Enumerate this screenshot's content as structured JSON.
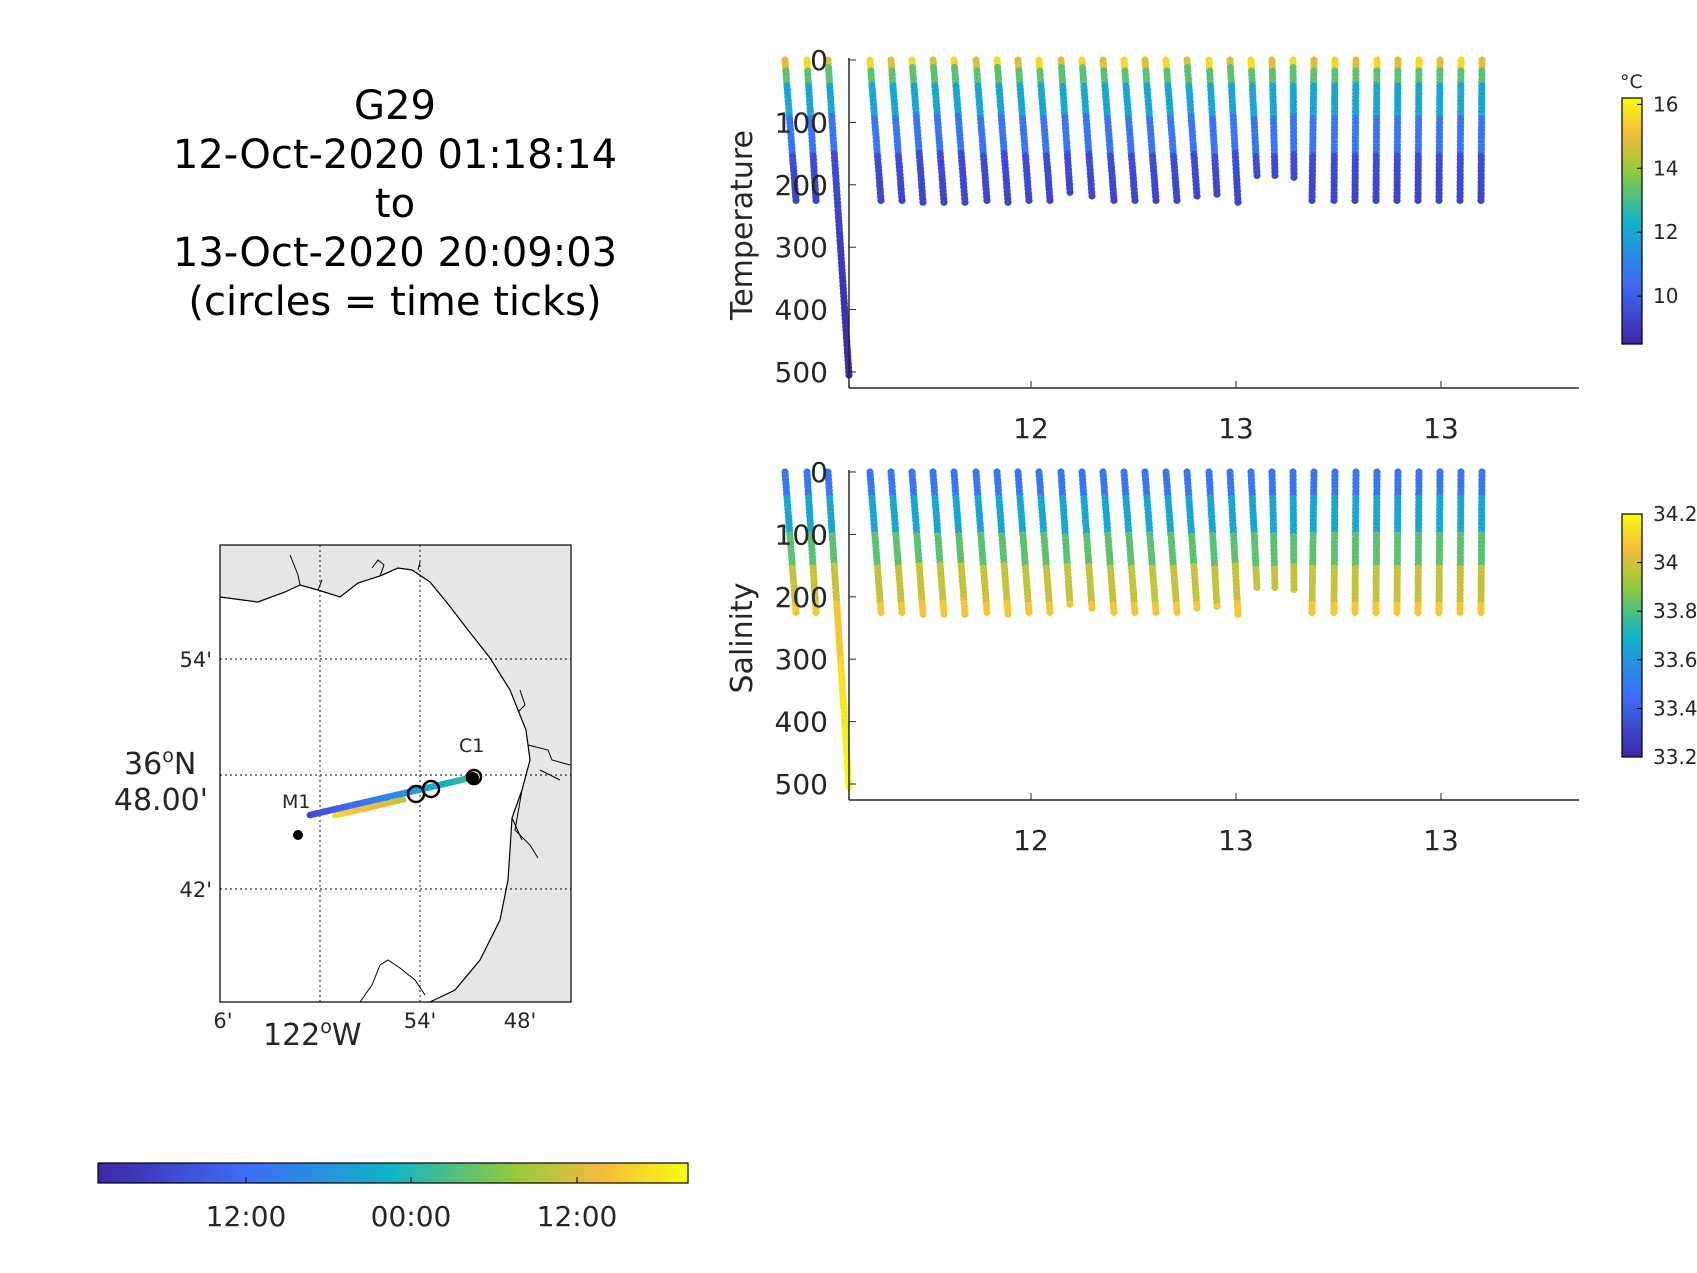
{
  "title": {
    "lines": [
      "G29",
      "12-Oct-2020 01:18:14",
      "to",
      "13-Oct-2020 20:09:03",
      "(circles = time ticks)"
    ]
  },
  "map": {
    "lat_ticks": [
      "54'",
      "42'"
    ],
    "lat_main_line1": "36",
    "lat_main_line1_suffix": "N",
    "lat_main_line2": "48.00'",
    "lon_ticks": [
      "6'",
      "54'",
      "48'"
    ],
    "lon_main": "122",
    "lon_main_suffix": "W",
    "degree_mark": "o",
    "stations": [
      "M1",
      "C1"
    ],
    "land_color": "#e6e6e6"
  },
  "time_colorbar": {
    "tick_labels": [
      "12:00",
      "00:00",
      "12:00"
    ]
  },
  "temp_colorbar": {
    "unit": "°C",
    "tick_labels": [
      "16",
      "14",
      "12",
      "10"
    ],
    "range": [
      8.5,
      16.2
    ]
  },
  "sal_colorbar": {
    "tick_labels": [
      "34.2",
      "34",
      "33.8",
      "33.6",
      "33.4",
      "33.2"
    ],
    "range": [
      33.2,
      34.2
    ]
  },
  "chart_data": [
    {
      "type": "scatter",
      "title": "",
      "ylabel": "Temperature",
      "xlabel": "",
      "x_tick_labels": [
        "12",
        "13",
        "13"
      ],
      "y_ticks": [
        0,
        100,
        200,
        300,
        400,
        500
      ],
      "ylim": [
        520,
        0
      ],
      "colormap": "parula",
      "color_range": [
        8.5,
        16.2
      ],
      "profile_max_depths": [
        225,
        225,
        505,
        225,
        225,
        228,
        228,
        228,
        225,
        228,
        225,
        225,
        212,
        218,
        225,
        225,
        225,
        225,
        218,
        215,
        228,
        185,
        185,
        188,
        225,
        225,
        225,
        225,
        225,
        225,
        225,
        225,
        225
      ],
      "grid": false
    },
    {
      "type": "scatter",
      "title": "",
      "ylabel": "Salinity",
      "xlabel": "",
      "x_tick_labels": [
        "12",
        "13",
        "13"
      ],
      "y_ticks": [
        0,
        100,
        200,
        300,
        400,
        500
      ],
      "ylim": [
        520,
        0
      ],
      "colormap": "parula",
      "color_range": [
        33.2,
        34.2
      ],
      "profile_max_depths": [
        225,
        225,
        505,
        225,
        225,
        228,
        228,
        228,
        225,
        228,
        225,
        225,
        212,
        218,
        225,
        225,
        225,
        225,
        218,
        215,
        228,
        185,
        185,
        188,
        225,
        225,
        225,
        225,
        225,
        225,
        225,
        225,
        225
      ],
      "grid": false
    }
  ]
}
